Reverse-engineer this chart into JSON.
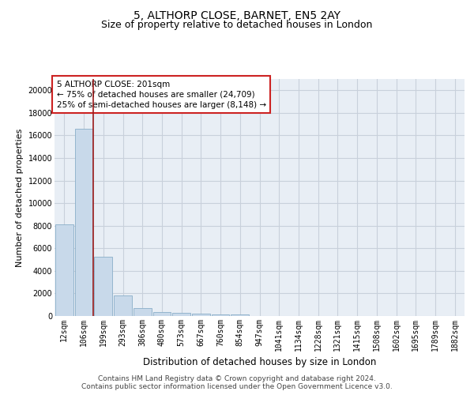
{
  "title": "5, ALTHORP CLOSE, BARNET, EN5 2AY",
  "subtitle": "Size of property relative to detached houses in London",
  "xlabel": "Distribution of detached houses by size in London",
  "ylabel": "Number of detached properties",
  "categories": [
    "12sqm",
    "106sqm",
    "199sqm",
    "293sqm",
    "386sqm",
    "480sqm",
    "573sqm",
    "667sqm",
    "760sqm",
    "854sqm",
    "947sqm",
    "1041sqm",
    "1134sqm",
    "1228sqm",
    "1321sqm",
    "1415sqm",
    "1508sqm",
    "1602sqm",
    "1695sqm",
    "1789sqm",
    "1882sqm"
  ],
  "values": [
    8100,
    16600,
    5280,
    1850,
    700,
    350,
    260,
    205,
    160,
    120,
    0,
    0,
    0,
    0,
    0,
    0,
    0,
    0,
    0,
    0,
    0
  ],
  "bar_color": "#c8d9ea",
  "bar_edge_color": "#8aaec8",
  "highlight_line_color": "#9b1a1a",
  "annotation_box_text": "5 ALTHORP CLOSE: 201sqm\n← 75% of detached houses are smaller (24,709)\n25% of semi-detached houses are larger (8,148) →",
  "ylim": [
    0,
    21000
  ],
  "yticks": [
    0,
    2000,
    4000,
    6000,
    8000,
    10000,
    12000,
    14000,
    16000,
    18000,
    20000
  ],
  "background_color": "#e8eef5",
  "grid_color": "#c8d0db",
  "footer_line1": "Contains HM Land Registry data © Crown copyright and database right 2024.",
  "footer_line2": "Contains public sector information licensed under the Open Government Licence v3.0.",
  "title_fontsize": 10,
  "subtitle_fontsize": 9,
  "xlabel_fontsize": 8.5,
  "ylabel_fontsize": 8,
  "tick_fontsize": 7,
  "annotation_fontsize": 7.5,
  "footer_fontsize": 6.5
}
